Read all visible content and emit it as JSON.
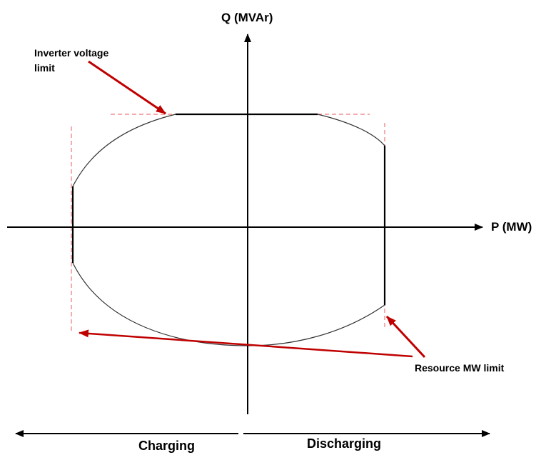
{
  "axes": {
    "x_label": "P (MW)",
    "y_label": "Q (MVAr)"
  },
  "annotations": {
    "inverter_voltage_limit_line1": "Inverter voltage",
    "inverter_voltage_limit_line2": "limit",
    "resource_mw_limit": "Resource MW limit"
  },
  "direction": {
    "charging": "Charging",
    "discharging": "Discharging"
  },
  "colors": {
    "axis": "#000000",
    "curve": "#333333",
    "limit_dashed": "#ee7777",
    "arrow": "#c00000"
  }
}
